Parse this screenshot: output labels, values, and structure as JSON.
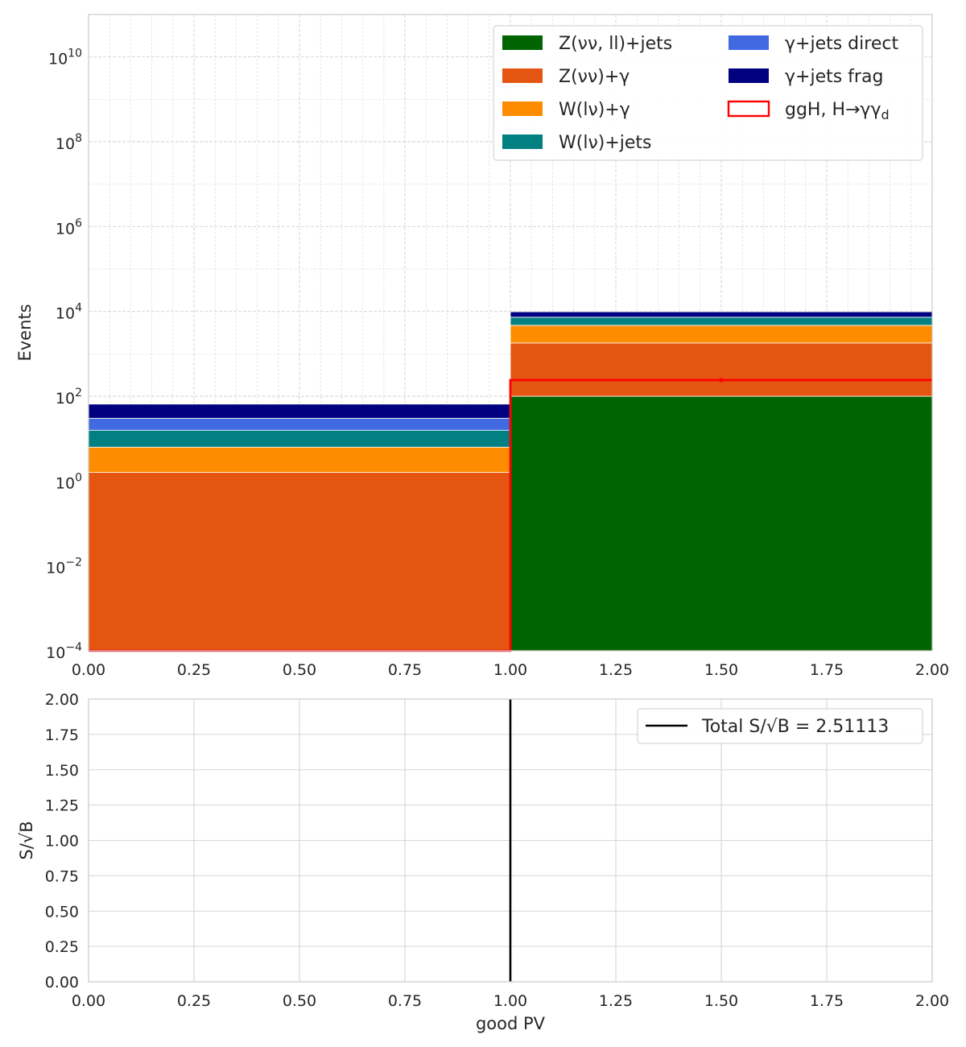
{
  "chart_data": [
    {
      "type": "bar",
      "stacked": true,
      "ylabel": "Events",
      "xlabel": "",
      "yscale": "log",
      "xlim": [
        0.0,
        2.0
      ],
      "ylim": [
        0.0001,
        100000000000
      ],
      "grid": true,
      "bins": [
        [
          0.0,
          1.0
        ],
        [
          1.0,
          2.0
        ]
      ],
      "xticks": [
        "0.00",
        "0.25",
        "0.50",
        "0.75",
        "1.00",
        "1.25",
        "1.50",
        "1.75",
        "2.00"
      ],
      "yticks": [
        {
          "base": "10",
          "exp": "−4",
          "value": 0.0001
        },
        {
          "base": "10",
          "exp": "−2",
          "value": 0.01
        },
        {
          "base": "10",
          "exp": "0",
          "value": 1
        },
        {
          "base": "10",
          "exp": "2",
          "value": 100
        },
        {
          "base": "10",
          "exp": "4",
          "value": 10000
        },
        {
          "base": "10",
          "exp": "6",
          "value": 1000000
        },
        {
          "base": "10",
          "exp": "8",
          "value": 100000000
        },
        {
          "base": "10",
          "exp": "10",
          "value": 10000000000
        }
      ],
      "series": [
        {
          "name": "Z(νν, ll)+jets",
          "color": "#006400",
          "values": [
            0,
            100
          ]
        },
        {
          "name": "Z(νν)+γ",
          "color": "#e45511",
          "values": [
            1.6,
            1700
          ]
        },
        {
          "name": "W(lν)+γ",
          "color": "#ff8c00",
          "values": [
            4.7,
            2900
          ]
        },
        {
          "name": "W(lν)+jets",
          "color": "#008080",
          "values": [
            9.5,
            2600
          ]
        },
        {
          "name": "γ+jets direct",
          "color": "#4169e1",
          "values": [
            14.5,
            0
          ]
        },
        {
          "name": "γ+jets frag",
          "color": "#000080",
          "values": [
            35,
            2500
          ]
        }
      ],
      "signal": {
        "name": "ggH, H→γγ_d",
        "color": "#ff0000",
        "values": [
          0,
          240
        ]
      },
      "legend": {
        "placement": "top-right",
        "columns": [
          [
            "Z(νν, ll)+jets",
            "Z(νν)+γ",
            "W(lν)+γ",
            "W(lν)+jets"
          ],
          [
            "γ+jets direct",
            "γ+jets frag",
            "ggH, H→γγ_d"
          ]
        ]
      }
    },
    {
      "type": "line",
      "xlabel": "good PV",
      "ylabel": "S/√B",
      "xlim": [
        0.0,
        2.0
      ],
      "ylim": [
        0.0,
        2.0
      ],
      "grid": true,
      "xticks": [
        "0.00",
        "0.25",
        "0.50",
        "0.75",
        "1.00",
        "1.25",
        "1.50",
        "1.75",
        "2.00"
      ],
      "yticks": [
        "0.00",
        "0.25",
        "0.50",
        "0.75",
        "1.00",
        "1.25",
        "1.50",
        "1.75",
        "2.00"
      ],
      "series": [
        {
          "name": "Total S/√B = 2.51113",
          "color": "#000000",
          "x": [
            1.0,
            1.0
          ],
          "y": [
            0.0,
            2.0
          ]
        }
      ],
      "legend": {
        "placement": "top-right",
        "text": "Total S/√B = 2.51113",
        "text_color": "#800080"
      }
    }
  ]
}
